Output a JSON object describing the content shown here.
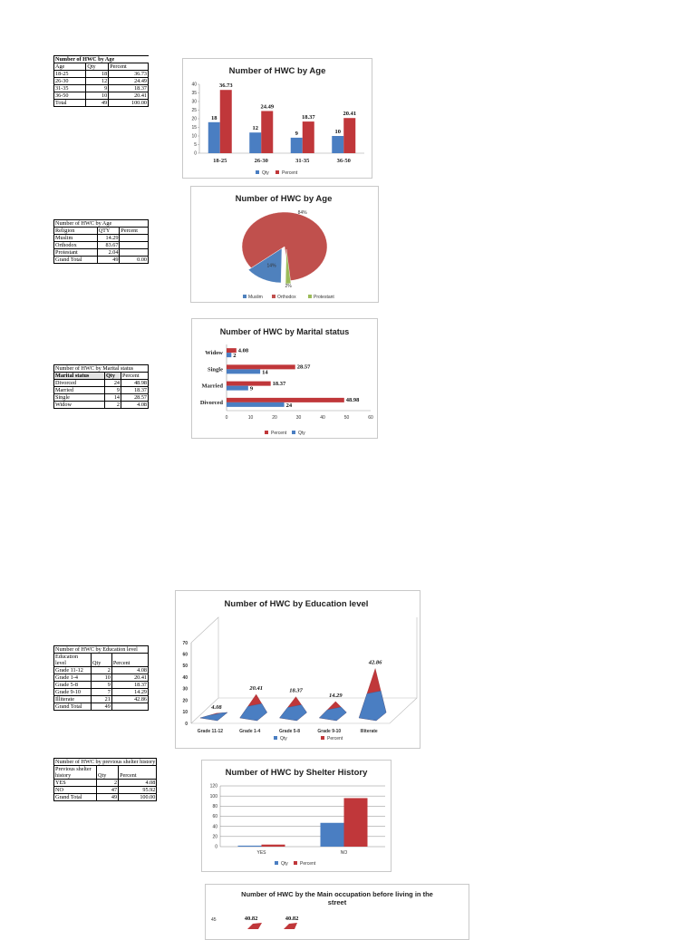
{
  "colors": {
    "qty": "#4a7ec2",
    "percent": "#c0373a",
    "protestant": "#9bbb59",
    "orthodox": "#c0504d",
    "muslim": "#4f81bd"
  },
  "tables": {
    "age": {
      "caption": "Number of HWC by Age",
      "headers": [
        "Age",
        "Qty",
        "Percent"
      ],
      "rows": [
        [
          "18-25",
          "18",
          "36.73"
        ],
        [
          "26-30",
          "12",
          "24.49"
        ],
        [
          "31-35",
          "9",
          "18.37"
        ],
        [
          "36-50",
          "10",
          "20.41"
        ],
        [
          "Total",
          "49",
          "100.00"
        ]
      ]
    },
    "religion": {
      "caption": "Number of HWC by Age",
      "headers": [
        "Religion",
        "QTY",
        "Percent"
      ],
      "rows": [
        [
          "Muslim",
          "14.29",
          ""
        ],
        [
          "Orthodox",
          "83.67",
          ""
        ],
        [
          "Protestant",
          "2.04",
          ""
        ],
        [
          "Grand Total",
          "49",
          "0.00"
        ]
      ]
    },
    "marital": {
      "caption": "Number of HWC by Marital status",
      "headers": [
        "Marital status",
        "Qty",
        "Percent"
      ],
      "rows": [
        [
          "Divorced",
          "24",
          "48.98"
        ],
        [
          "Married",
          "9",
          "18.37"
        ],
        [
          "Single",
          "14",
          "28.57"
        ],
        [
          "Widow",
          "2",
          "4.08"
        ]
      ]
    },
    "education": {
      "caption": "Number of HWC by Education level",
      "headers": [
        "Education level",
        "Qty",
        "Percent"
      ],
      "rows": [
        [
          "Grade 11-12",
          "2",
          "4.08"
        ],
        [
          "Grade 1-4",
          "10",
          "20.41"
        ],
        [
          "Grade 5-8",
          "9",
          "18.37"
        ],
        [
          "Grade 9-10",
          "7",
          "14.29"
        ],
        [
          "Illiterate",
          "21",
          "42.86"
        ],
        [
          "Grand Total",
          "49",
          ""
        ]
      ]
    },
    "shelter": {
      "caption": "Number of HWC by previous shelter history",
      "headers": [
        "Previous shelter history",
        "Qty",
        "Percent"
      ],
      "rows": [
        [
          "YES",
          "2",
          "4.08"
        ],
        [
          "NO",
          "47",
          "95.92"
        ],
        [
          "Grand Total",
          "49",
          "100.00"
        ]
      ]
    }
  },
  "chart_data": [
    {
      "type": "bar",
      "title": "Number of HWC by Age",
      "categories": [
        "18-25",
        "26-30",
        "31-35",
        "36-50"
      ],
      "series": [
        {
          "name": "Qty",
          "values": [
            18,
            12,
            9,
            10
          ]
        },
        {
          "name": "Percent",
          "values": [
            36.73,
            24.49,
            18.37,
            20.41
          ]
        }
      ],
      "data_labels": {
        "qty": [
          "18",
          "12",
          "9",
          "10"
        ],
        "percent": [
          "36.73",
          "24.49",
          "18.37",
          "20.41"
        ]
      },
      "ylim": [
        0,
        40
      ],
      "yticks": [
        "0",
        "5",
        "10",
        "15",
        "20",
        "25",
        "30",
        "35",
        "40"
      ],
      "legend": "bottom"
    },
    {
      "type": "pie",
      "title": "Number of HWC by Age",
      "labels": [
        "Muslim",
        "Orthodox",
        "Protestant"
      ],
      "values": [
        14,
        84,
        2
      ],
      "slice_labels": [
        "14%",
        "84%",
        "2%"
      ],
      "legend": "bottom"
    },
    {
      "type": "bar",
      "orientation": "horizontal",
      "title": "Number of HWC by Marital status",
      "categories": [
        "Widow",
        "Single",
        "Married",
        "Divorced"
      ],
      "series": [
        {
          "name": "Percent",
          "values": [
            4.08,
            28.57,
            18.37,
            48.98
          ]
        },
        {
          "name": "Qty",
          "values": [
            2,
            14,
            9,
            24
          ]
        }
      ],
      "data_labels": {
        "percent": [
          "4.08",
          "28.57",
          "18.37",
          "48.98"
        ],
        "qty": [
          "2",
          "14",
          "9",
          "24"
        ]
      },
      "xlim": [
        0,
        60
      ],
      "xticks": [
        "0",
        "10",
        "20",
        "30",
        "40",
        "50",
        "60"
      ],
      "legend": "bottom"
    },
    {
      "type": "bar",
      "style": "3d-pyramid",
      "title": "Number of HWC by Education level",
      "categories": [
        "Grade 11-12",
        "Grade 1-4",
        "Grade 5-8",
        "Grade 9-10",
        "Illiterate"
      ],
      "series": [
        {
          "name": "Qty",
          "values": [
            2,
            10,
            9,
            7,
            21
          ]
        },
        {
          "name": "Percent",
          "values": [
            4.08,
            20.41,
            18.37,
            14.29,
            42.86
          ]
        }
      ],
      "data_labels": {
        "percent": [
          "4.08",
          "20.41",
          "18.37",
          "14.29",
          "42.86"
        ]
      },
      "ylim": [
        0,
        70
      ],
      "yticks": [
        "0",
        "10",
        "20",
        "30",
        "40",
        "50",
        "60",
        "70"
      ],
      "legend": "bottom"
    },
    {
      "type": "bar",
      "title": "Number of HWC by Shelter History",
      "categories": [
        "YES",
        "NO"
      ],
      "series": [
        {
          "name": "Qty",
          "values": [
            2,
            47
          ]
        },
        {
          "name": "Percent",
          "values": [
            4.08,
            95.92
          ]
        }
      ],
      "ylim": [
        0,
        120
      ],
      "yticks": [
        "0",
        "20",
        "40",
        "60",
        "80",
        "100",
        "120"
      ],
      "legend": "bottom"
    },
    {
      "type": "bar",
      "title": "Number of HWC by the Main occupation before living in the street",
      "data_labels": [
        "40.82",
        "40.82"
      ],
      "yticks": [
        "45"
      ],
      "partial": true
    }
  ]
}
